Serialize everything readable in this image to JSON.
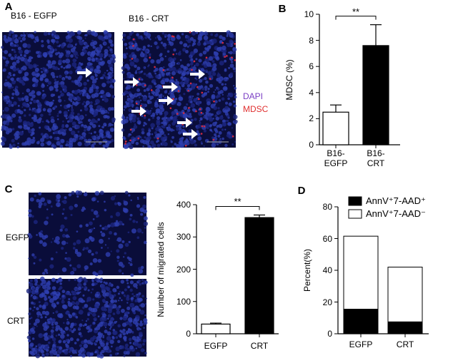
{
  "images": [
    {
      "panel": "A",
      "labels": [
        "B16 - EGFP",
        "B16 - CRT"
      ],
      "legend": [
        {
          "text": "DAPI",
          "color": "#7b3fc4"
        },
        {
          "text": "MDSC",
          "color": "#e03030"
        }
      ]
    },
    {
      "panel": "C",
      "labels": [
        "EGFP",
        "CRT"
      ]
    }
  ],
  "chart_data": [
    {
      "type": "bar",
      "panel": "B",
      "ylabel": "MDSC (%)",
      "categories": [
        "B16-\nEGFP",
        "B16-\nCRT"
      ],
      "values": [
        2.5,
        7.6
      ],
      "errors": [
        0.55,
        1.6
      ],
      "colors": [
        "#ffffff",
        "#000000"
      ],
      "ylim": [
        0,
        10
      ],
      "yticks": [
        0,
        2,
        4,
        6,
        8,
        10
      ],
      "annotation": "**"
    },
    {
      "type": "bar",
      "panel": "C",
      "ylabel": "Number of migrated cells",
      "categories": [
        "EGFP",
        "CRT"
      ],
      "values": [
        30,
        360
      ],
      "errors": [
        3,
        8
      ],
      "colors": [
        "#ffffff",
        "#000000"
      ],
      "ylim": [
        0,
        400
      ],
      "yticks": [
        0,
        100,
        200,
        300,
        400
      ],
      "annotation": "**"
    },
    {
      "type": "stacked_bar",
      "panel": "D",
      "ylabel": "Percent(%)",
      "categories": [
        "EGFP",
        "CRT"
      ],
      "series": [
        {
          "name": "AnnV⁺7-AAD⁺",
          "color": "#000000",
          "values": [
            15.5,
            7.5
          ]
        },
        {
          "name": "AnnV⁺7-AAD⁻",
          "color": "#ffffff",
          "values": [
            46,
            34.5
          ]
        }
      ],
      "ylim": [
        0,
        80
      ],
      "yticks": [
        0,
        20,
        40,
        60,
        80
      ],
      "legend": "top-right"
    }
  ]
}
